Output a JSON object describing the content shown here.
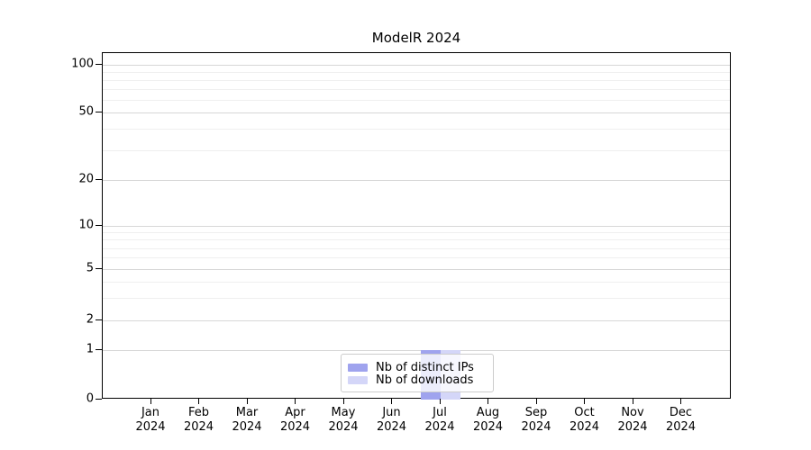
{
  "chart_data": {
    "type": "bar",
    "title": "ModelR 2024",
    "xlabel": "",
    "ylabel": "",
    "categories": [
      "Jan 2024",
      "Feb 2024",
      "Mar 2024",
      "Apr 2024",
      "May 2024",
      "Jun 2024",
      "Jul 2024",
      "Aug 2024",
      "Sep 2024",
      "Oct 2024",
      "Nov 2024",
      "Dec 2024"
    ],
    "series": [
      {
        "name": "Nb of distinct IPs",
        "color": "#9fa3ee",
        "values": [
          0,
          0,
          0,
          0,
          0,
          0,
          1,
          0,
          0,
          0,
          0,
          0
        ]
      },
      {
        "name": "Nb of downloads",
        "color": "#d4d6f8",
        "values": [
          0,
          0,
          0,
          0,
          0,
          0,
          1,
          0,
          0,
          0,
          0,
          0
        ]
      }
    ],
    "y_axis": {
      "scale": "log-like",
      "ticks": [
        0,
        1,
        2,
        5,
        10,
        20,
        50,
        100
      ],
      "minor_ticks": [
        3,
        4,
        6,
        7,
        8,
        9,
        30,
        40,
        60,
        70,
        80,
        90
      ],
      "ylim": [
        0,
        118
      ]
    },
    "grid": true,
    "legend_position": "lower center inside plot"
  }
}
